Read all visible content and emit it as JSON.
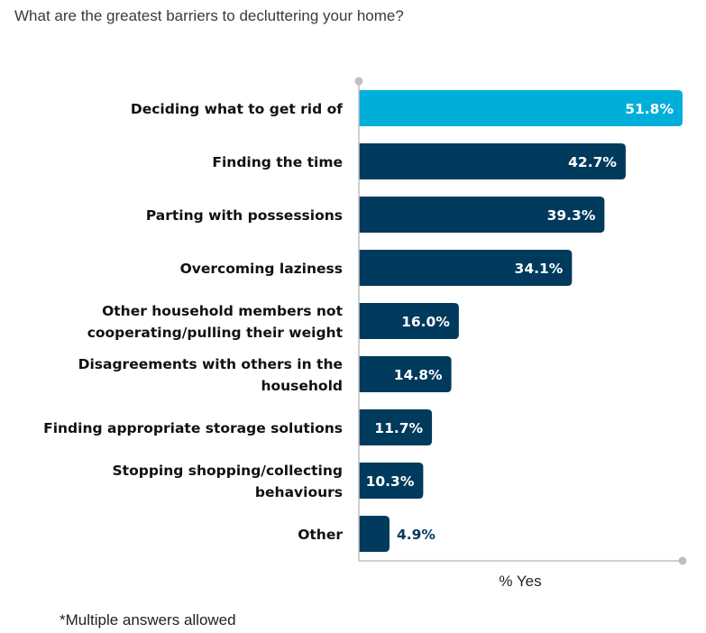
{
  "chart_data": {
    "type": "bar",
    "orientation": "horizontal",
    "title": "What are the greatest barriers to decluttering your home?",
    "categories": [
      "Deciding what to get rid of",
      "Finding the time",
      "Parting with possessions",
      "Overcoming laziness",
      "Other household members not cooperating/pulling their weight",
      "Disagreements with others in the household",
      "Finding appropriate storage solutions",
      "Stopping shopping/collecting behaviours",
      "Other"
    ],
    "category_lines": [
      [
        "Deciding what to get rid of"
      ],
      [
        "Finding the time"
      ],
      [
        "Parting with possessions"
      ],
      [
        "Overcoming laziness"
      ],
      [
        "Other household members not",
        "cooperating/pulling their weight"
      ],
      [
        "Disagreements with others in the",
        "household"
      ],
      [
        "Finding appropriate storage solutions"
      ],
      [
        "Stopping shopping/collecting",
        "behaviours"
      ],
      [
        "Other"
      ]
    ],
    "values": [
      51.8,
      42.7,
      39.3,
      34.1,
      16.0,
      14.8,
      11.7,
      10.3,
      4.9
    ],
    "data_labels": [
      "51.8%",
      "42.7%",
      "39.3%",
      "34.1%",
      "16.0%",
      "14.8%",
      "11.7%",
      "10.3%",
      "4.9%"
    ],
    "xlabel": "% Yes",
    "ylabel": "",
    "xlim": [
      0,
      51.8
    ],
    "grid": false,
    "colors": {
      "highlight": "#00AEDA",
      "bar": "#003A5D",
      "axis": "#BFBFBF"
    }
  },
  "footnote": "*Multiple answers allowed"
}
